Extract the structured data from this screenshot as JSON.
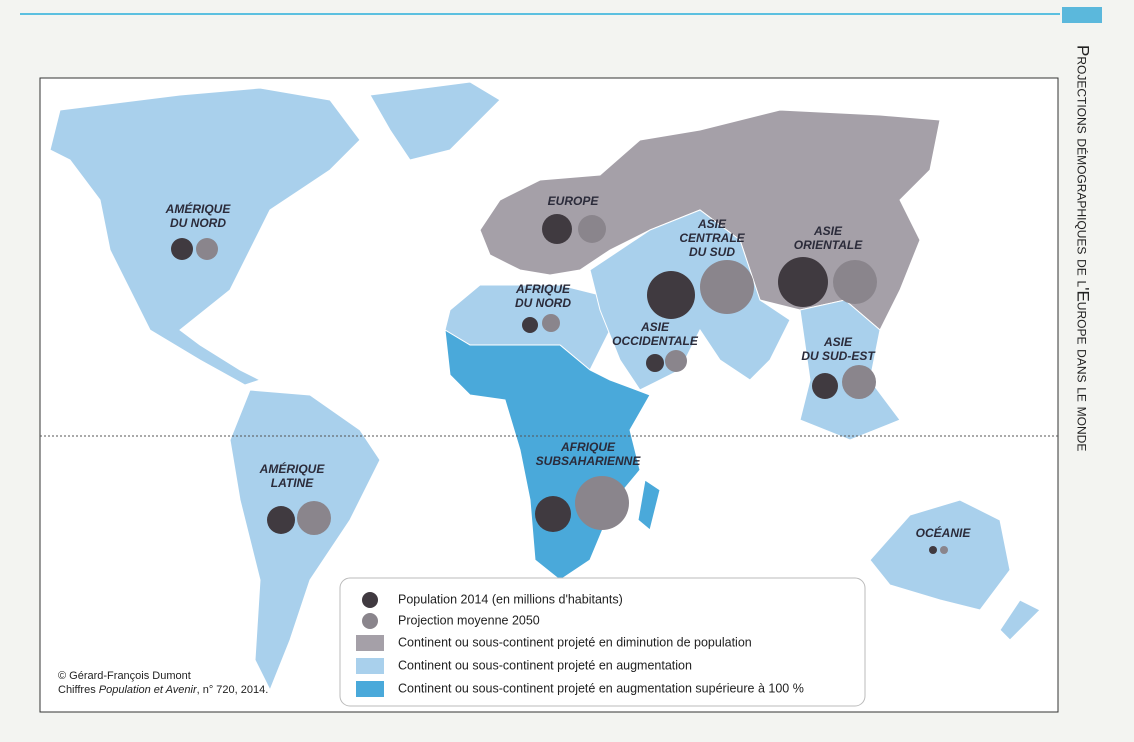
{
  "side_title": "Projections démographiques de l'Europe dans le monde",
  "regions": [
    {
      "lines": [
        "AMÉRIQUE",
        "DU NORD"
      ]
    },
    {
      "lines": [
        "EUROPE"
      ]
    },
    {
      "lines": [
        "ASIE",
        "CENTRALE",
        "DU SUD"
      ]
    },
    {
      "lines": [
        "ASIE",
        "ORIENTALE"
      ]
    },
    {
      "lines": [
        "AFRIQUE",
        "DU NORD"
      ]
    },
    {
      "lines": [
        "ASIE",
        "OCCIDENTALE"
      ]
    },
    {
      "lines": [
        "ASIE",
        "DU SUD-EST"
      ]
    },
    {
      "lines": [
        "AFRIQUE",
        "SUBSAHARIENNE"
      ]
    },
    {
      "lines": [
        "AMÉRIQUE",
        "LATINE"
      ]
    },
    {
      "lines": [
        "OCÉANIE"
      ]
    }
  ],
  "legend": [
    "Population 2014 (en millions d'habitants)",
    "Projection moyenne 2050",
    "Continent ou sous-continent projeté en diminution de population",
    "Continent ou sous-continent projeté en augmentation",
    "Continent ou sous-continent projeté en augmentation supérieure à 100 %"
  ],
  "credit": {
    "line1": "© Gérard-François Dumont",
    "line2_before": "Chiffres ",
    "line2_italic": "Population et Avenir",
    "line2_after": ", n° 720, 2014."
  }
}
